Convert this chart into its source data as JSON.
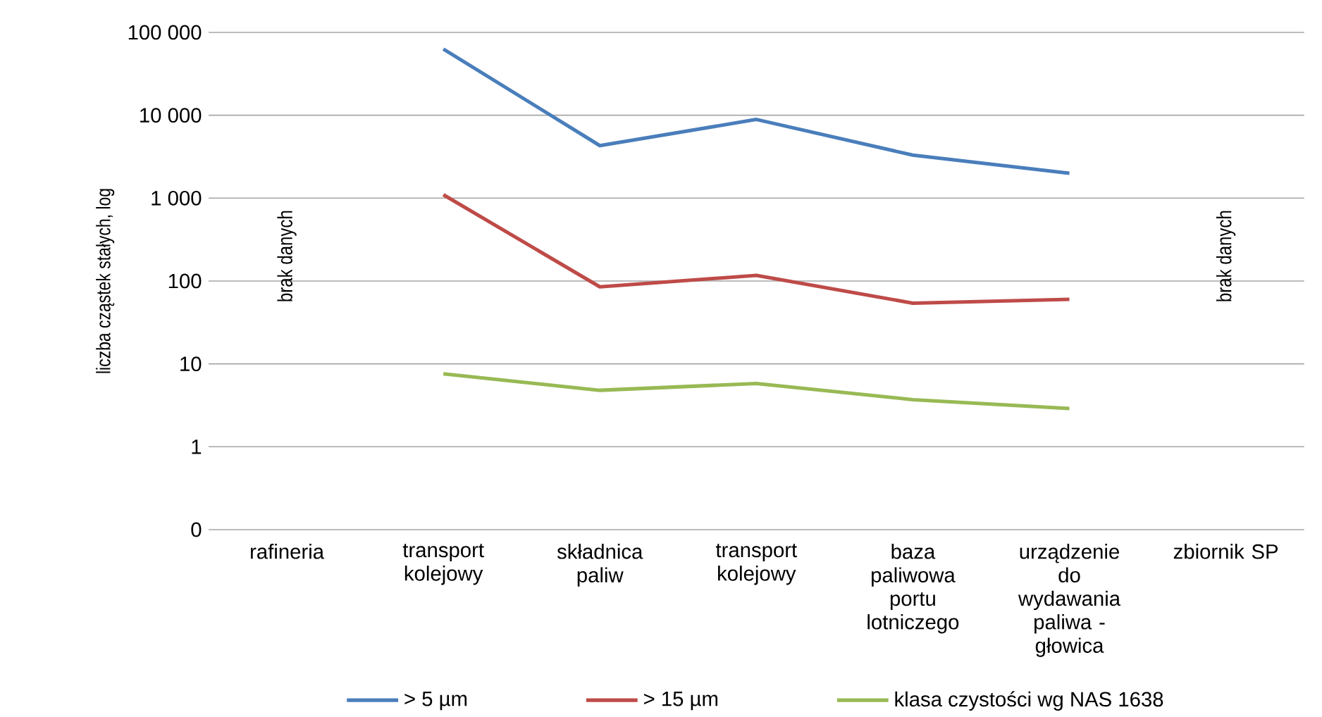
{
  "chart_data": {
    "type": "line",
    "ylabel": "liczba cząstek stałych, log",
    "categories": [
      "rafineria",
      "transport kolejowy",
      "składnica paliw",
      "transport kolejowy",
      "baza paliwowa portu lotniczego",
      "urządzenie do wydawania paliwa - głowica",
      "zbiornik SP"
    ],
    "series": [
      {
        "name": "> 5 µm",
        "color": "#4a7ebb",
        "values": [
          null,
          63000,
          4300,
          8900,
          3300,
          2000,
          null
        ]
      },
      {
        "name": "> 15 µm",
        "color": "#be4b48",
        "values": [
          null,
          1100,
          85,
          117,
          54,
          60,
          null
        ]
      },
      {
        "name": "klasa czystości wg NAS 1638",
        "color": "#98b954",
        "values": [
          null,
          7.6,
          4.8,
          5.8,
          3.7,
          2.9,
          null
        ]
      }
    ],
    "log": true,
    "ylim": [
      0.1,
      100000
    ],
    "yticks": [
      {
        "value": 0.1,
        "label": "0"
      },
      1,
      10,
      100,
      {
        "value": 1000,
        "label": "1 000"
      },
      {
        "value": 10000,
        "label": "10 000"
      },
      {
        "value": 100000,
        "label": "100 000"
      }
    ],
    "grid": "y",
    "legend": "bottom",
    "marker": "none",
    "line_style": "solid",
    "annotations": [
      "brak danych",
      "brak danych"
    ]
  }
}
